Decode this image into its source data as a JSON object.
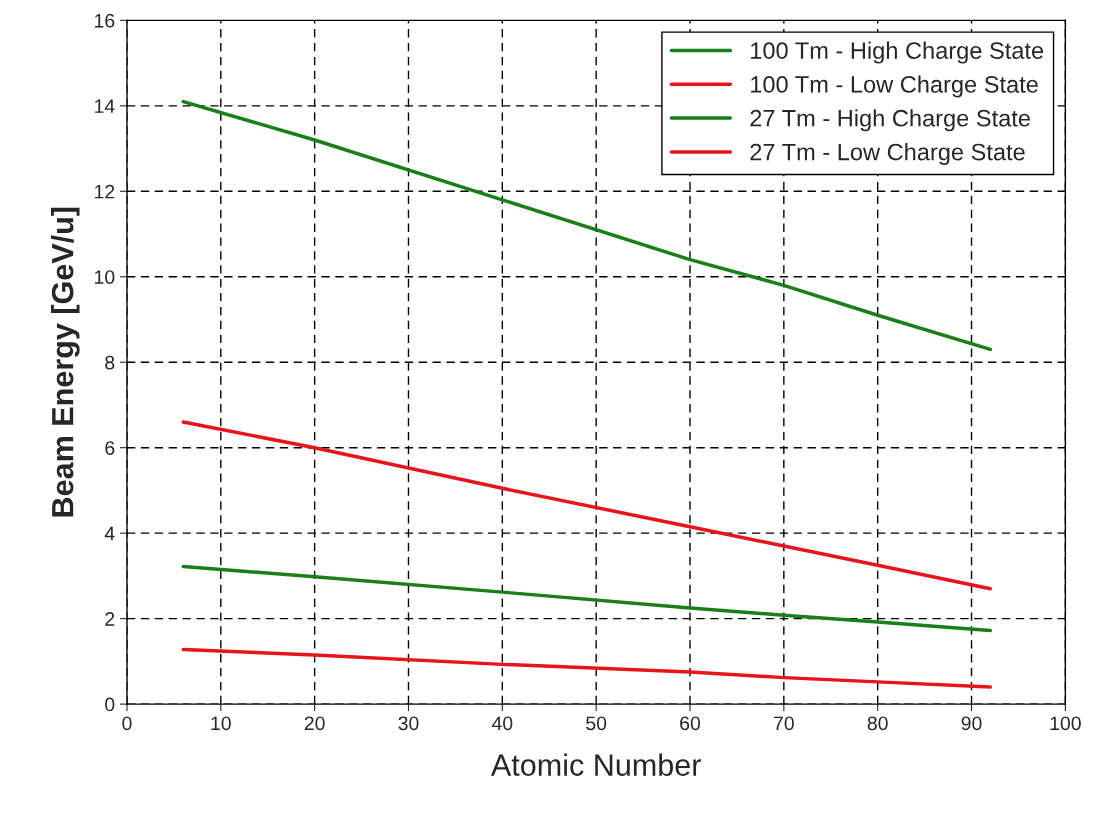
{
  "chart_data": {
    "type": "line",
    "xlabel": "Atomic Number",
    "ylabel": "Beam Energy [GeV/u]",
    "xlim": [
      0,
      100
    ],
    "xticks": [
      0,
      10,
      20,
      30,
      40,
      50,
      60,
      70,
      80,
      90,
      100
    ],
    "ylim": [
      0,
      16
    ],
    "yticks": [
      0,
      2,
      4,
      6,
      8,
      10,
      12,
      14,
      16
    ],
    "grid": true,
    "legend": "top right",
    "line_style": "solid",
    "marker": "none",
    "series": [
      {
        "name": "100 Tm - High Charge State",
        "color": "#1a7f1a",
        "x": [
          6,
          20,
          40,
          60,
          70,
          80,
          92
        ],
        "values": [
          14.1,
          13.2,
          11.8,
          10.4,
          9.8,
          9.1,
          8.3
        ]
      },
      {
        "name": "100 Tm - Low Charge State",
        "color": "#e8141c",
        "x": [
          6,
          20,
          40,
          60,
          70,
          80,
          92
        ],
        "values": [
          6.6,
          6.0,
          5.05,
          4.15,
          3.7,
          3.25,
          2.7
        ]
      },
      {
        "name": "27 Tm - High Charge State",
        "color": "#1a7f1a",
        "x": [
          6,
          20,
          40,
          60,
          70,
          80,
          92
        ],
        "values": [
          3.22,
          2.98,
          2.62,
          2.25,
          2.08,
          1.92,
          1.72
        ]
      },
      {
        "name": "27 Tm - Low Charge State",
        "color": "#e8141c",
        "x": [
          6,
          20,
          40,
          60,
          70,
          80,
          92
        ],
        "values": [
          1.28,
          1.15,
          0.93,
          0.75,
          0.62,
          0.52,
          0.4
        ]
      }
    ]
  }
}
